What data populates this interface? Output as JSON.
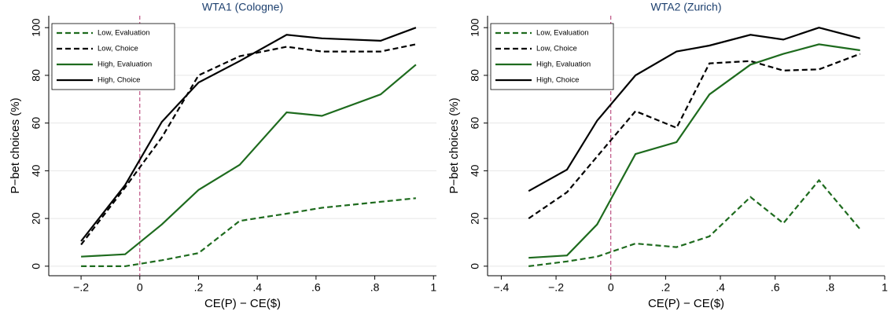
{
  "chart_data": [
    {
      "type": "line",
      "title": "WTA1 (Cologne)",
      "x_label": "CE(P) − CE($)",
      "y_label": "P−bet choices (%)",
      "x": [
        -0.2,
        -0.05,
        0.075,
        0.2,
        0.34,
        0.5,
        0.62,
        0.82,
        0.94
      ],
      "series": [
        {
          "name": "Low, Evaluation",
          "color": "#1e6b1e",
          "dashed": true,
          "values": [
            0,
            0,
            2.5,
            5.5,
            19,
            22,
            24.5,
            27,
            28.5
          ]
        },
        {
          "name": "Low, Choice",
          "color": "#000000",
          "dashed": true,
          "values": [
            9,
            33,
            54,
            80,
            88,
            92,
            90,
            90,
            93
          ]
        },
        {
          "name": "High, Evaluation",
          "color": "#1e6b1e",
          "dashed": false,
          "values": [
            4,
            5,
            17.5,
            32,
            42.5,
            64.5,
            63,
            72,
            84.5
          ]
        },
        {
          "name": "High, Choice",
          "color": "#000000",
          "dashed": false,
          "values": [
            10.5,
            34,
            60.5,
            77,
            86,
            97,
            95.5,
            94.5,
            100
          ]
        }
      ],
      "xlim": [
        -0.31,
        1.01
      ],
      "ylim": [
        -4,
        105
      ],
      "xticks": [
        {
          "value": -0.2,
          "label": "−.2"
        },
        0,
        {
          "value": 0.2,
          "label": ".2"
        },
        {
          "value": 0.4,
          "label": ".4"
        },
        {
          "value": 0.6,
          "label": ".6"
        },
        {
          "value": 0.8,
          "label": ".8"
        },
        1
      ],
      "yticks": [
        0,
        20,
        40,
        60,
        80,
        100
      ],
      "xline": 0,
      "xline_color": "#b0306a",
      "grid": true,
      "legend": "upper left"
    },
    {
      "type": "line",
      "title": "WTA2 (Zurich)",
      "x_label": "CE(P) − CE($)",
      "y_label": "P−bet choices (%)",
      "x": [
        -0.3,
        -0.16,
        -0.05,
        0.09,
        0.24,
        0.36,
        0.51,
        0.63,
        0.76,
        0.91
      ],
      "series": [
        {
          "name": "Low, Evaluation",
          "color": "#1e6b1e",
          "dashed": true,
          "values": [
            0,
            2,
            4,
            9.5,
            8,
            12.5,
            29,
            18,
            36,
            15.5
          ]
        },
        {
          "name": "Low, Choice",
          "color": "#000000",
          "dashed": true,
          "values": [
            20,
            31,
            46,
            65,
            58,
            85,
            86,
            82,
            82.5,
            89
          ]
        },
        {
          "name": "High, Evaluation",
          "color": "#1e6b1e",
          "dashed": false,
          "values": [
            3.5,
            4.5,
            17.5,
            47,
            52,
            72,
            84.5,
            89,
            93,
            90.5
          ]
        },
        {
          "name": "High, Choice",
          "color": "#000000",
          "dashed": false,
          "values": [
            31.5,
            40.5,
            61,
            80,
            90,
            92.5,
            97,
            95,
            100,
            95.5
          ]
        }
      ],
      "xlim": [
        -0.45,
        1.0
      ],
      "ylim": [
        -4,
        105
      ],
      "xticks": [
        {
          "value": -0.4,
          "label": "−.4"
        },
        {
          "value": -0.2,
          "label": "−.2"
        },
        0,
        {
          "value": 0.2,
          "label": ".2"
        },
        {
          "value": 0.4,
          "label": ".4"
        },
        {
          "value": 0.6,
          "label": ".6"
        },
        {
          "value": 0.8,
          "label": ".8"
        },
        1
      ],
      "yticks": [
        0,
        20,
        40,
        60,
        80,
        100
      ],
      "xline": 0,
      "xline_color": "#b0306a",
      "grid": true,
      "legend": "upper left"
    }
  ]
}
